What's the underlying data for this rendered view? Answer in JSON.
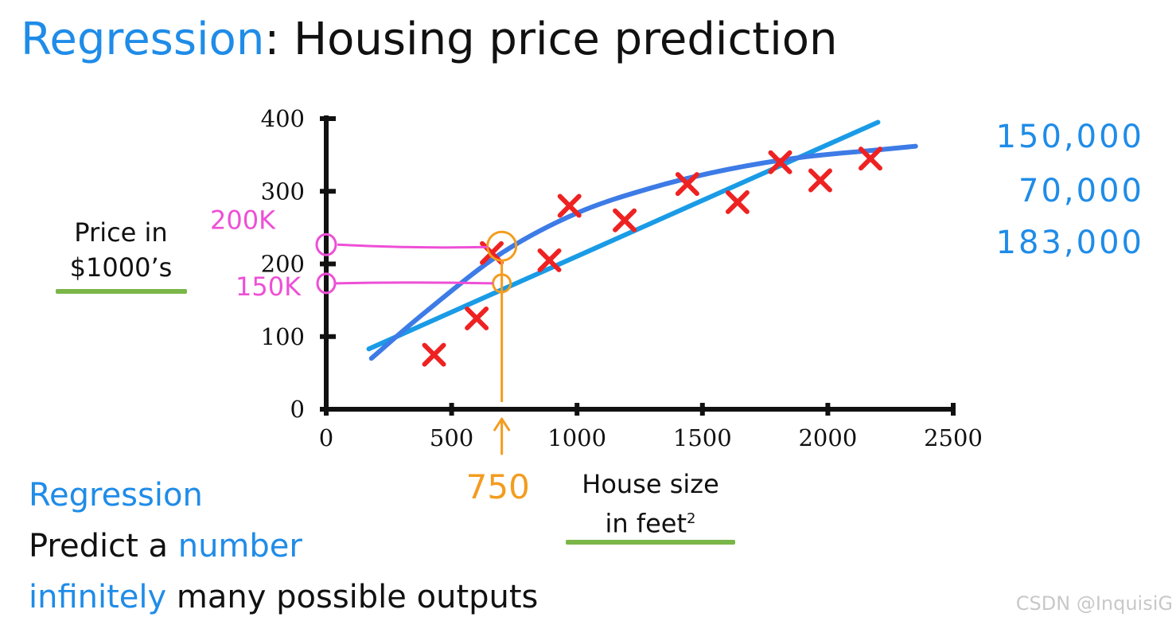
{
  "header": {
    "title_accent": "Regression",
    "title_rest": ": Housing price prediction"
  },
  "chart_data": {
    "type": "scatter",
    "xlabel": "House size in feet²",
    "xlabel_main": "House size",
    "xlabel_unit": "in feet",
    "xlabel_sup": "2",
    "ylabel": "Price in $1000's",
    "ylabel_line1": "Price in",
    "ylabel_line2": "$1000’s",
    "xlim": [
      0,
      2500
    ],
    "ylim": [
      0,
      400
    ],
    "x_ticks": [
      "0",
      "500",
      "1000",
      "1500",
      "2000",
      "2500"
    ],
    "y_ticks": [
      "0",
      "100",
      "200",
      "300",
      "400"
    ],
    "grid": false,
    "points": [
      {
        "x": 430,
        "y": 75
      },
      {
        "x": 600,
        "y": 125
      },
      {
        "x": 660,
        "y": 215
      },
      {
        "x": 890,
        "y": 205
      },
      {
        "x": 970,
        "y": 280
      },
      {
        "x": 1190,
        "y": 260
      },
      {
        "x": 1440,
        "y": 310
      },
      {
        "x": 1640,
        "y": 285
      },
      {
        "x": 1810,
        "y": 340
      },
      {
        "x": 1970,
        "y": 315
      },
      {
        "x": 2170,
        "y": 345
      }
    ],
    "fits": [
      {
        "kind": "straight-line",
        "color": "#1a9be6",
        "x": [
          170,
          2200
        ],
        "y": [
          83,
          395
        ]
      },
      {
        "kind": "curve",
        "color": "#3d7be6",
        "x": [
          180,
          400,
          700,
          1000,
          1300,
          1600,
          1900,
          2200,
          2350
        ],
        "y": [
          70,
          135,
          215,
          270,
          305,
          330,
          347,
          357,
          362
        ]
      }
    ],
    "annotations": {
      "query_x_label": "750",
      "query_x": 700,
      "readings": [
        {
          "label": "200K",
          "y": 220
        },
        {
          "label": "150K",
          "y": 170
        }
      ],
      "price_guesses": [
        "150,000",
        "70,000",
        "183,000"
      ]
    },
    "marker_color": "#ee2222",
    "annotation_colors": {
      "blue": "#1f8ce8",
      "pink": "#ee4fd6",
      "orange": "#f39c1f"
    }
  },
  "notes": {
    "heading": "Regression",
    "line1_a": "Predict a ",
    "line1_b": "number",
    "line2_a": "infinitely",
    "line2_b": " many possible outputs"
  },
  "watermark": "CSDN @InquisiG"
}
